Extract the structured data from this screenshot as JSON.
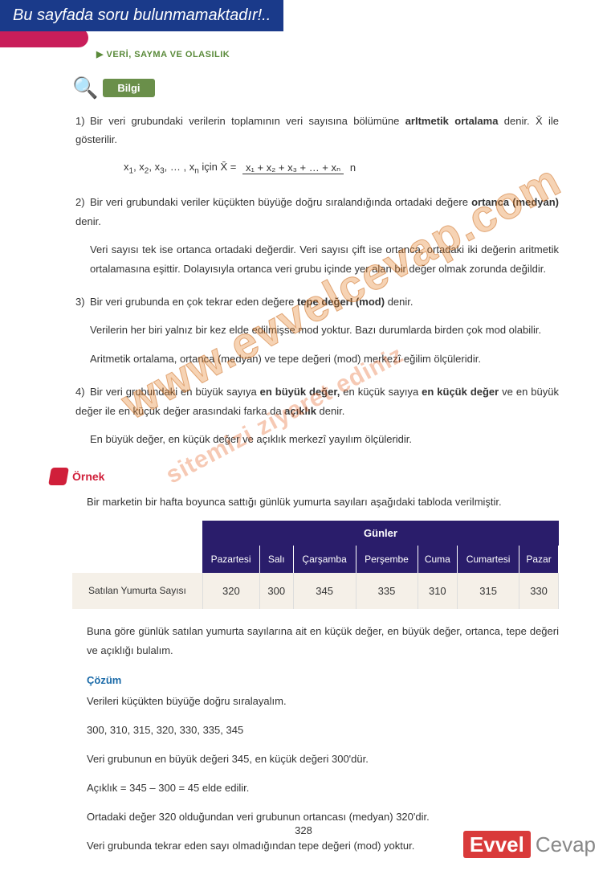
{
  "banner": "Bu sayfada soru bulunmamaktadır!..",
  "breadcrumb": "VERİ, SAYMA VE OLASILIK",
  "bilgi_label": "Bilgi",
  "items": {
    "i1": {
      "num": "1)",
      "text_a": "Bir veri grubundaki verilerin toplamının veri sayısına bölümüne ",
      "bold": "arItmetik ortalama",
      "text_b": " denir. X̄ ile gösterilir.",
      "formula_left": "x",
      "formula_mid": " için   X̄ = ",
      "formula_top": "x₁ + x₂ + x₃ + … + xₙ",
      "formula_bot": "n"
    },
    "i2": {
      "num": "2)",
      "text_a": "Bir veri grubundaki veriler küçükten büyüğe doğru sıralandığında ortadaki değere ",
      "bold": "ortanca (medyan)",
      "text_b": " denir.",
      "sub": "Veri sayısı tek ise ortanca ortadaki değerdir. Veri sayısı çift ise ortanca, ortadaki iki değerin aritmetik ortalamasına eşittir. Dolayısıyla ortanca veri grubu içinde yer alan bir değer olmak zorunda değildir."
    },
    "i3": {
      "num": "3)",
      "text_a": "Bir veri grubunda en çok tekrar eden değere ",
      "bold": "tepe değerI (mod)",
      "text_b": " denir.",
      "sub1": "Verilerin her biri yalnız bir kez elde edilmişse mod yoktur. Bazı durumlarda birden çok mod olabilir.",
      "sub2": "Aritmetik ortalama, ortanca (medyan) ve tepe değeri (mod) merkezî eğilim ölçüleridir."
    },
    "i4": {
      "num": "4)",
      "text_a": "Bir veri grubundaki en büyük sayıya ",
      "bold1": "en büyük değer,",
      "text_b": " en küçük sayıya ",
      "bold2": "en küçük değer",
      "text_c": " ve en büyük değer ile en küçük değer arasındaki farka da ",
      "bold3": "açıklık",
      "text_d": " denir.",
      "sub": "En büyük değer, en küçük değer ve açıklık merkezî yayılım ölçüleridir."
    }
  },
  "ornek_label": "Örnek",
  "ornek_text": "Bir marketin bir hafta boyunca sattığı günlük yumurta sayıları aşağıdaki tabloda verilmiştir.",
  "table": {
    "group": "Günler",
    "days": [
      "Pazartesi",
      "Salı",
      "Çarşamba",
      "Perşembe",
      "Cuma",
      "Cumartesi",
      "Pazar"
    ],
    "rowlabel": "Satılan Yumurta Sayısı",
    "values": [
      "320",
      "300",
      "345",
      "335",
      "310",
      "315",
      "330"
    ]
  },
  "question": "Buna göre günlük satılan yumurta sayılarına ait en küçük değer, en büyük değer, ortanca, tepe değeri ve açıklığı bulalım.",
  "cozum_label": "Çözüm",
  "solution": {
    "s1": "Verileri küçükten büyüğe doğru sıralayalım.",
    "s2": "300, 310, 315, 320, 330, 335, 345",
    "s3": "Veri grubunun en büyük değeri 345, en küçük değeri 300'dür.",
    "s4": "Açıklık = 345 – 300 = 45 elde edilir.",
    "s5": "Ortadaki değer 320 olduğundan veri grubunun ortancası (medyan) 320'dir.",
    "s6": "Veri grubunda tekrar eden sayı olmadığından tepe değeri (mod) yoktur."
  },
  "page_num": "328",
  "footer": {
    "brand1": "Evvel",
    "brand2": "Cevap"
  },
  "watermark1": "www.evvelcevap.com",
  "watermark2": "sitemizi ziyaret ediniz"
}
